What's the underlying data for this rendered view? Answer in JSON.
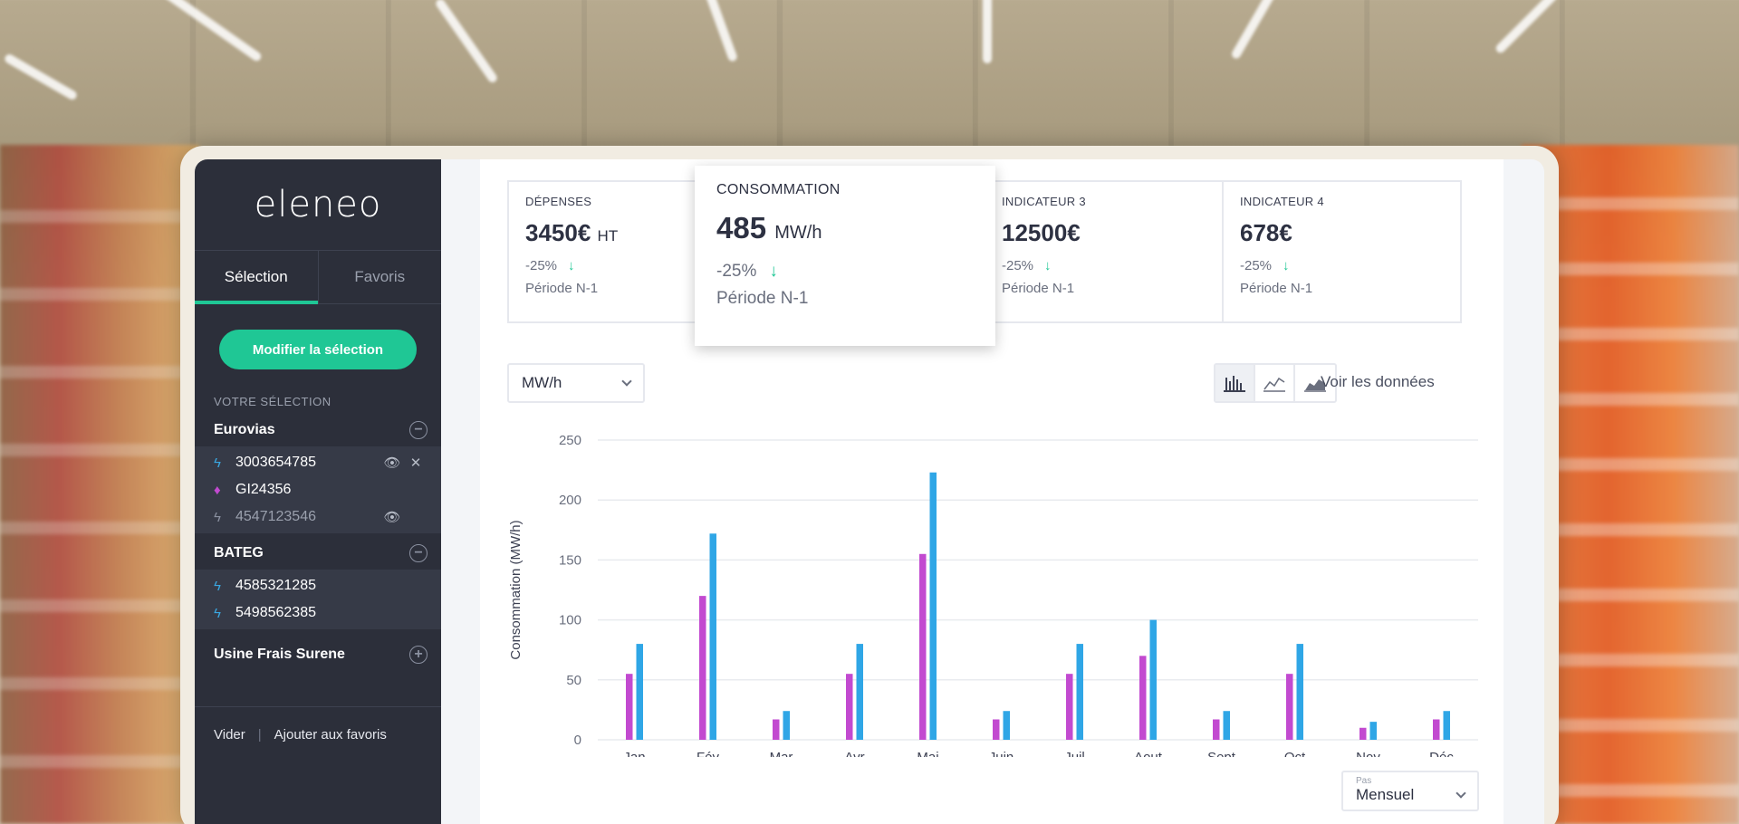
{
  "brand": {
    "logo": "eleneo"
  },
  "sidebar": {
    "tabs": [
      {
        "label": "Sélection",
        "active": true
      },
      {
        "label": "Favoris",
        "active": false
      }
    ],
    "modify_button": "Modifier la sélection",
    "section_title": "VOTRE SÉLECTION",
    "groups": [
      {
        "name": "Eurovias",
        "toggle": "−",
        "items": [
          {
            "id": "3003654785",
            "icon": "electricity-icon",
            "view": true,
            "remove": true,
            "dim": false
          },
          {
            "id": "GI24356",
            "icon": "gas-flame-icon",
            "view": false,
            "remove": false,
            "dim": false
          },
          {
            "id": "4547123546",
            "icon": "electricity-icon",
            "view": true,
            "remove": false,
            "dim": true
          }
        ]
      },
      {
        "name": "BATEG",
        "toggle": "−",
        "items": [
          {
            "id": "4585321285",
            "icon": "electricity-icon",
            "dim": false
          },
          {
            "id": "5498562385",
            "icon": "electricity-icon",
            "dim": false
          }
        ]
      },
      {
        "name": "Usine Frais Surene",
        "toggle": "+"
      }
    ],
    "footer": {
      "clear": "Vider",
      "separator": "|",
      "add_favorites": "Ajouter aux favoris"
    }
  },
  "kpis": [
    {
      "title": "DÉPENSES",
      "value": "3450€",
      "unit": "HT",
      "delta": "-25%",
      "period": "Période N-1"
    },
    {
      "title": "INDICATEUR 3",
      "value": "12500€",
      "unit": "",
      "delta": "-25%",
      "period": "Période N-1"
    },
    {
      "title": "INDICATEUR 4",
      "value": "678€",
      "unit": "",
      "delta": "-25%",
      "period": "Période N-1"
    }
  ],
  "popover": {
    "title": "CONSOMMATION",
    "value": "485",
    "unit": "MW/h",
    "delta": "-25%",
    "period": "Période N-1"
  },
  "controls": {
    "unit_select": "MW/h",
    "see_data": "Voir les données",
    "step_label": "Pas",
    "step_value": "Mensuel"
  },
  "colors": {
    "accent": "#1fc795",
    "series_a": "#c24ad0",
    "series_b": "#2fa6e6",
    "sidebar": "#2c2f3a"
  },
  "chart_data": {
    "type": "bar",
    "ylabel": "Consommation (MW/h)",
    "xlabel": "",
    "ylim": [
      0,
      250
    ],
    "yticks": [
      0,
      50,
      100,
      150,
      200,
      250
    ],
    "categories": [
      "Jan",
      "Fév",
      "Mar",
      "Avr",
      "Mai",
      "Juin",
      "Juil",
      "Aout",
      "Sept",
      "Oct",
      "Nov",
      "Déc"
    ],
    "series": [
      {
        "values": [
          55,
          120,
          17,
          55,
          155,
          17,
          55,
          70,
          17,
          55,
          10,
          17
        ]
      },
      {
        "values": [
          80,
          172,
          24,
          80,
          223,
          24,
          80,
          100,
          24,
          80,
          15,
          24
        ]
      }
    ],
    "grid": true,
    "legend": "none"
  }
}
